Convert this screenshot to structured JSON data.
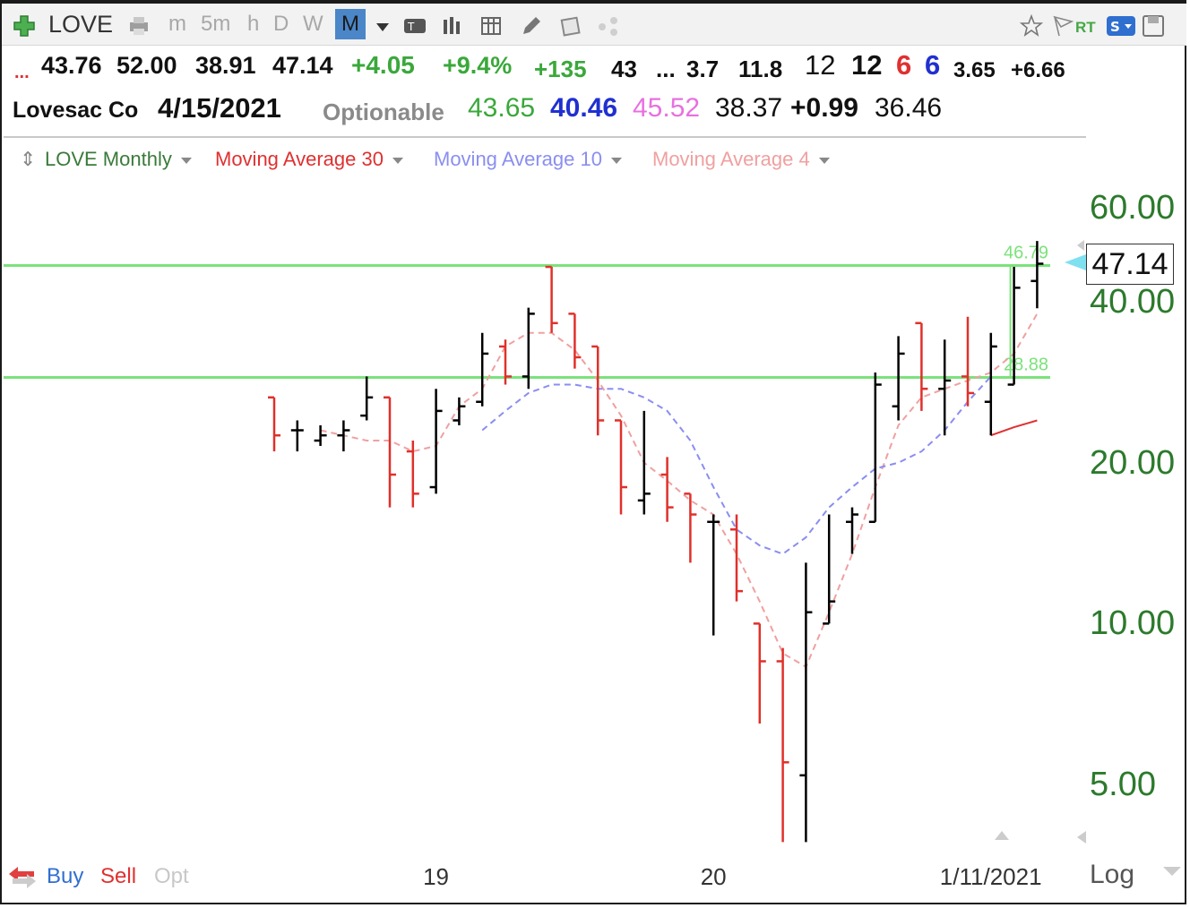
{
  "toolbar": {
    "symbol": "LOVE",
    "timeframes": [
      "m",
      "5m",
      "h",
      "D",
      "W",
      "M"
    ],
    "active_timeframe": "M",
    "rt_label": "RT"
  },
  "quote": {
    "row1": {
      "ellipsis": "...",
      "open": "43.76",
      "high": "52.00",
      "low": "38.91",
      "close": "47.14",
      "change": "+4.05",
      "change_pct": "+9.4%",
      "v1": "+135",
      "v2": "43",
      "v3": "...",
      "v4": "3.7",
      "v5": "11.8",
      "v6": "12",
      "v7": "12",
      "v8": "6",
      "v9": "6",
      "v10": "3.65",
      "v11": "+6.66"
    },
    "row2": {
      "company": "Lovesac Co",
      "date": "4/15/2021",
      "optionable": "Optionable",
      "v1": "43.65",
      "v2": "40.46",
      "v3": "45.52",
      "v4": "38.37",
      "v5": "+0.99",
      "v6": "36.46"
    }
  },
  "legend": {
    "main": "LOVE Monthly",
    "ma30": "Moving Average 30",
    "ma10": "Moving Average 10",
    "ma4": "Moving Average 4"
  },
  "bottom_bar": {
    "buy": "Buy",
    "sell": "Sell",
    "opt": "Opt",
    "log": "Log"
  },
  "colors": {
    "up_bar": "#000000",
    "down_bar": "#e0302a",
    "ma10": "#8a8ef0",
    "ma4": "#f0a0a0",
    "ma30": "#e03030",
    "hline": "#7be27b",
    "axis_text": "#2c7a2c"
  },
  "chart_data": {
    "type": "ohlc",
    "title": "LOVE Monthly",
    "scale": "log",
    "ylim": [
      3.9,
      75
    ],
    "yticks": [
      5,
      10,
      20,
      40,
      60
    ],
    "ytick_labels": [
      "5.00",
      "10.00",
      "20.00",
      "40.00",
      "60.00"
    ],
    "x_tick_labels": [
      {
        "label": "19",
        "bar_index": 7
      },
      {
        "label": "20",
        "bar_index": 19
      },
      {
        "label": "1/11/2021",
        "bar_index": 31
      }
    ],
    "last_price": "47.14",
    "hlines": [
      {
        "value": 46.79,
        "label": "46.79"
      },
      {
        "value": 28.88,
        "label": "28.88"
      }
    ],
    "bars": [
      {
        "o": 26.5,
        "h": 26.5,
        "l": 21.0,
        "c": 22.5
      },
      {
        "o": 23.0,
        "h": 24.0,
        "l": 21.0,
        "c": 23.0
      },
      {
        "o": 22.0,
        "h": 23.5,
        "l": 21.5,
        "c": 22.5
      },
      {
        "o": 22.5,
        "h": 24.0,
        "l": 21.0,
        "c": 23.0
      },
      {
        "o": 24.5,
        "h": 29.0,
        "l": 24.0,
        "c": 26.5
      },
      {
        "o": 26.5,
        "h": 26.5,
        "l": 16.5,
        "c": 19.0
      },
      {
        "o": 21.0,
        "h": 22.0,
        "l": 16.5,
        "c": 17.5
      },
      {
        "o": 18.0,
        "h": 27.5,
        "l": 17.5,
        "c": 25.0
      },
      {
        "o": 24.0,
        "h": 26.5,
        "l": 23.5,
        "c": 25.5
      },
      {
        "o": 26.0,
        "h": 35.0,
        "l": 25.5,
        "c": 32.0
      },
      {
        "o": 33.0,
        "h": 34.0,
        "l": 28.0,
        "c": 29.0
      },
      {
        "o": 29.0,
        "h": 39.0,
        "l": 27.5,
        "c": 38.0
      },
      {
        "o": 46.5,
        "h": 46.5,
        "l": 35.0,
        "c": 36.5
      },
      {
        "o": 38.0,
        "h": 38.0,
        "l": 30.0,
        "c": 31.5
      },
      {
        "o": 33.0,
        "h": 33.0,
        "l": 22.5,
        "c": 24.0
      },
      {
        "o": 24.0,
        "h": 24.0,
        "l": 16.0,
        "c": 18.0
      },
      {
        "o": 17.0,
        "h": 25.0,
        "l": 16.0,
        "c": 17.5
      },
      {
        "o": 19.0,
        "h": 20.5,
        "l": 15.5,
        "c": 16.5
      },
      {
        "o": 17.5,
        "h": 17.5,
        "l": 13.0,
        "c": 16.0
      },
      {
        "o": 15.5,
        "h": 16.0,
        "l": 9.5,
        "c": 15.5
      },
      {
        "o": 15.0,
        "h": 16.0,
        "l": 11.0,
        "c": 11.5
      },
      {
        "o": 10.0,
        "h": 10.0,
        "l": 6.5,
        "c": 8.5
      },
      {
        "o": 8.5,
        "h": 9.0,
        "l": 3.9,
        "c": 5.5
      },
      {
        "o": 5.2,
        "h": 13.0,
        "l": 3.9,
        "c": 10.5
      },
      {
        "o": 10.0,
        "h": 16.0,
        "l": 10.0,
        "c": 11.0
      },
      {
        "o": 15.5,
        "h": 16.5,
        "l": 13.5,
        "c": 16.0
      },
      {
        "o": 15.5,
        "h": 29.5,
        "l": 15.5,
        "c": 28.0
      },
      {
        "o": 25.5,
        "h": 34.5,
        "l": 24.0,
        "c": 32.0
      },
      {
        "o": 36.5,
        "h": 36.5,
        "l": 25.0,
        "c": 27.5
      },
      {
        "o": 27.5,
        "h": 34.0,
        "l": 22.5,
        "c": 28.5
      },
      {
        "o": 29.0,
        "h": 37.5,
        "l": 25.5,
        "c": 27.0
      },
      {
        "o": 26.0,
        "h": 35.0,
        "l": 22.5,
        "c": 33.0
      },
      {
        "o": 28.0,
        "h": 46.5,
        "l": 28.0,
        "c": 42.5
      },
      {
        "o": 43.76,
        "h": 52.0,
        "l": 38.91,
        "c": 47.14
      }
    ],
    "series": [
      {
        "name": "Moving Average 4",
        "style": "dashed",
        "start_index": 2,
        "values": [
          23.0,
          22.5,
          22.0,
          22.0,
          21.0,
          21.5,
          25.5,
          27.5,
          33.0,
          35.0,
          35.0,
          32.5,
          28.5,
          24.5,
          20.0,
          18.5,
          17.0,
          16.0,
          13.5,
          11.0,
          8.8,
          8.3,
          10.5,
          13.5,
          18.0,
          23.5,
          26.5,
          27.5,
          28.5,
          29.5,
          32.0,
          38.0
        ]
      },
      {
        "name": "Moving Average 10",
        "style": "dashed",
        "start_index": 9,
        "values": [
          23.0,
          25.0,
          27.0,
          28.0,
          28.0,
          27.5,
          27.5,
          26.5,
          25.0,
          22.0,
          18.0,
          15.0,
          14.0,
          13.5,
          14.5,
          16.5,
          18.0,
          19.5,
          20.0,
          21.0,
          23.0,
          26.0,
          29.0
        ]
      },
      {
        "name": "Moving Average 30",
        "style": "solid",
        "start_index": 31,
        "values": [
          22.5,
          23.3,
          24.0
        ]
      }
    ]
  }
}
